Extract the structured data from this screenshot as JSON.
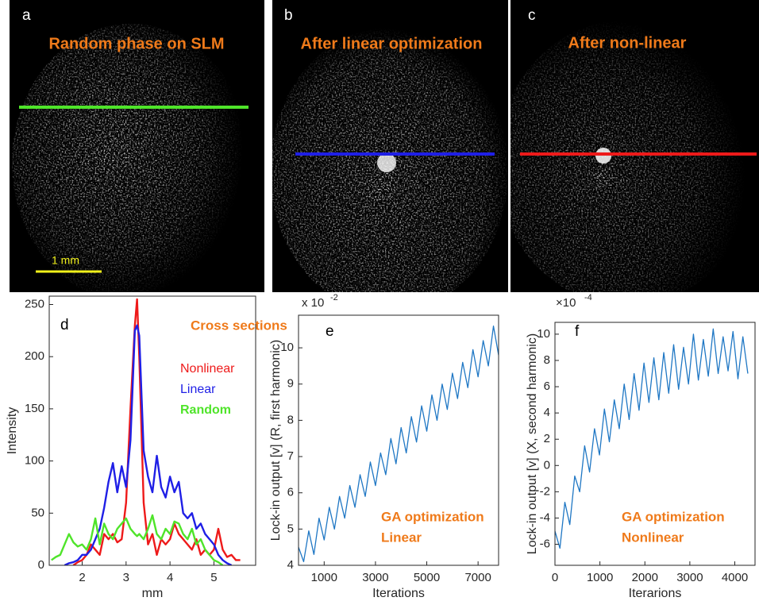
{
  "panels": [
    {
      "letter": "a",
      "title": "Random phase on SLM",
      "line_color": "#4fe42a",
      "scale_label": "1 mm"
    },
    {
      "letter": "b",
      "title": "After linear optimization",
      "line_color": "#1f1fe6"
    },
    {
      "letter": "c",
      "title": "After non-linear",
      "line_color": "#ee1a1a"
    }
  ],
  "chart_data": [
    {
      "type": "line",
      "label": "d",
      "annotation": "Cross sections",
      "x_label": "mm",
      "y_label": "Intensity",
      "xlim": [
        1.25,
        5.95
      ],
      "ylim": [
        0,
        258
      ],
      "xticks": [
        2,
        3,
        4,
        5
      ],
      "yticks": [
        0,
        50,
        100,
        150,
        200,
        250
      ],
      "x": [
        1.3,
        1.4,
        1.5,
        1.6,
        1.7,
        1.8,
        1.9,
        2.0,
        2.1,
        2.2,
        2.3,
        2.4,
        2.5,
        2.6,
        2.7,
        2.8,
        2.9,
        3.0,
        3.1,
        3.2,
        3.25,
        3.3,
        3.4,
        3.5,
        3.6,
        3.7,
        3.8,
        3.9,
        4.0,
        4.1,
        4.2,
        4.3,
        4.4,
        4.5,
        4.6,
        4.7,
        4.8,
        4.9,
        5.0,
        5.1,
        5.2,
        5.3,
        5.4,
        5.5,
        5.6
      ],
      "series": [
        {
          "name": "Nonlinear",
          "color": "#ee1a1a",
          "values": [
            null,
            null,
            null,
            null,
            null,
            0,
            3,
            5,
            10,
            20,
            15,
            10,
            30,
            25,
            30,
            22,
            25,
            60,
            150,
            230,
            255,
            200,
            60,
            20,
            30,
            10,
            25,
            20,
            25,
            40,
            30,
            25,
            20,
            15,
            25,
            10,
            15,
            10,
            15,
            35,
            15,
            8,
            10,
            5,
            5
          ]
        },
        {
          "name": "Linear",
          "color": "#1f1fe6",
          "values": [
            null,
            null,
            null,
            0,
            2,
            3,
            5,
            10,
            10,
            15,
            25,
            35,
            55,
            80,
            98,
            70,
            95,
            75,
            120,
            225,
            230,
            220,
            110,
            85,
            70,
            105,
            75,
            65,
            85,
            70,
            80,
            50,
            45,
            50,
            35,
            40,
            30,
            25,
            20,
            10,
            5,
            2,
            0,
            null,
            null
          ]
        },
        {
          "name": "Random",
          "color": "#4fe42a",
          "values": [
            5,
            8,
            10,
            20,
            30,
            22,
            18,
            20,
            15,
            25,
            45,
            20,
            40,
            30,
            25,
            35,
            40,
            45,
            35,
            30,
            28,
            30,
            25,
            35,
            48,
            30,
            25,
            35,
            30,
            42,
            40,
            30,
            25,
            35,
            20,
            25,
            15,
            10,
            5,
            3,
            0,
            null,
            null,
            null,
            null
          ]
        }
      ]
    },
    {
      "type": "line",
      "label": "e",
      "annotation": [
        "GA optimization",
        "Linear"
      ],
      "x_label": "Iterations",
      "y_label": "Lock-in output [v] (R, first harmonic)",
      "exponent_base": "x 10",
      "exponent": "-2",
      "xlim": [
        0,
        7800
      ],
      "ylim": [
        4,
        10.9
      ],
      "xticks": [
        1000,
        3000,
        5000,
        7000
      ],
      "yticks": [
        4,
        5,
        6,
        7,
        8,
        9,
        10
      ],
      "x": [
        0,
        200,
        400,
        600,
        800,
        1000,
        1200,
        1400,
        1600,
        1800,
        2000,
        2200,
        2400,
        2600,
        2800,
        3000,
        3200,
        3400,
        3600,
        3800,
        4000,
        4200,
        4400,
        4600,
        4800,
        5000,
        5200,
        5400,
        5600,
        5800,
        6000,
        6200,
        6400,
        6600,
        6800,
        7000,
        7200,
        7400,
        7600,
        7800
      ],
      "series": [
        {
          "color": "#1f77c4",
          "values": [
            4.5,
            4.1,
            4.95,
            4.3,
            5.3,
            4.7,
            5.6,
            5.0,
            5.9,
            5.3,
            6.2,
            5.6,
            6.5,
            5.9,
            6.85,
            6.2,
            7.1,
            6.5,
            7.5,
            6.8,
            7.8,
            7.1,
            8.1,
            7.4,
            8.4,
            7.7,
            8.7,
            8.0,
            9.0,
            8.3,
            9.3,
            8.6,
            9.6,
            8.9,
            9.95,
            9.2,
            10.2,
            9.5,
            10.6,
            9.8
          ]
        }
      ]
    },
    {
      "type": "line",
      "label": "f",
      "annotation": [
        "GA optimization",
        "Nonlinear"
      ],
      "x_label": "Iterarions",
      "y_label": "Lock-in output [v] (X, second harmonic)",
      "exponent_base": "×10",
      "exponent": "-4",
      "xlim": [
        0,
        4450
      ],
      "ylim": [
        -7.6,
        10.9
      ],
      "xticks": [
        0,
        1000,
        2000,
        3000,
        4000
      ],
      "yticks": [
        -6,
        -4,
        -2,
        0,
        2,
        4,
        6,
        8,
        10
      ],
      "x": [
        0,
        110,
        220,
        330,
        440,
        550,
        660,
        770,
        880,
        990,
        1100,
        1210,
        1320,
        1430,
        1540,
        1650,
        1760,
        1870,
        1980,
        2090,
        2200,
        2310,
        2420,
        2530,
        2640,
        2750,
        2860,
        2970,
        3080,
        3190,
        3300,
        3410,
        3520,
        3630,
        3740,
        3850,
        3960,
        4070,
        4180,
        4290
      ],
      "series": [
        {
          "color": "#1f77c4",
          "values": [
            -5.0,
            -6.3,
            -2.8,
            -4.5,
            -0.8,
            -2.0,
            1.5,
            -0.5,
            2.8,
            0.8,
            4.3,
            1.8,
            5.0,
            2.8,
            6.2,
            3.5,
            7.0,
            4.2,
            7.8,
            4.8,
            8.2,
            5.0,
            8.6,
            5.5,
            9.2,
            5.8,
            9.0,
            6.2,
            10.0,
            6.5,
            9.6,
            6.8,
            10.4,
            7.0,
            9.8,
            7.2,
            10.2,
            6.6,
            9.8,
            7.0
          ]
        }
      ]
    }
  ]
}
